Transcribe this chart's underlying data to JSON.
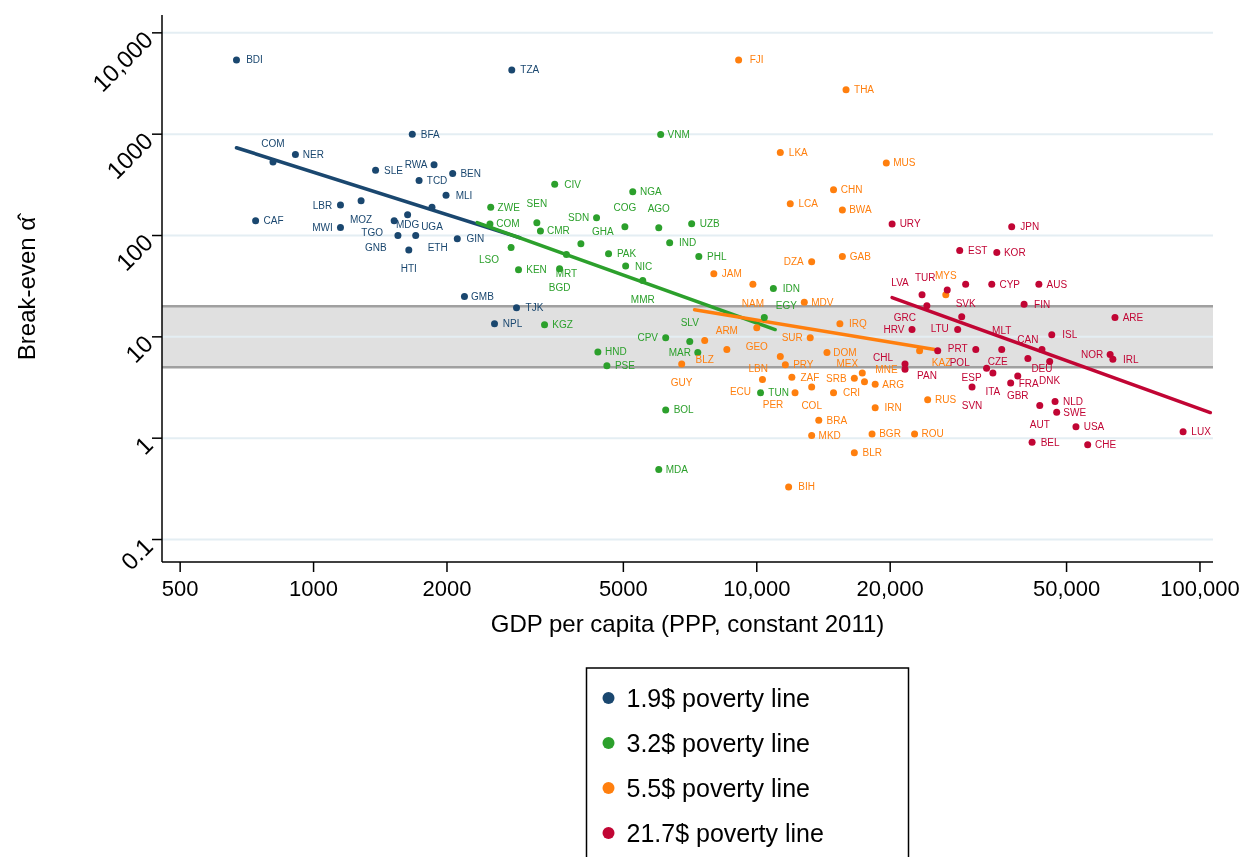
{
  "chart_data": {
    "type": "scatter",
    "xlabel": "GDP per capita (PPP, constant 2011)",
    "ylabel": "Break-even α̂",
    "log": "xy",
    "xlim": [
      455,
      107000
    ],
    "ylim": [
      0.06,
      15000
    ],
    "xticks": [
      500,
      1000,
      2000,
      5000,
      {
        "value": 10000,
        "label": "10,000"
      },
      {
        "value": 20000,
        "label": "20,000"
      },
      {
        "value": 50000,
        "label": "50,000"
      },
      {
        "value": 100000,
        "label": "100,000"
      }
    ],
    "yticks": [
      0.1,
      1,
      10,
      100,
      1000,
      {
        "value": 10000,
        "label": "10,000"
      }
    ],
    "grid": "y",
    "legend": "bottom",
    "marker": "circle",
    "bands": [
      {
        "axis": "y",
        "from": 5,
        "to": 20,
        "color": "#e0e0e0"
      }
    ],
    "ref_lines": [
      {
        "axis": "y",
        "value": 5,
        "color": "#a0a0a0"
      },
      {
        "axis": "y",
        "value": 20,
        "color": "#a0a0a0"
      }
    ],
    "series": [
      {
        "name": "1.9$ poverty line",
        "color": "#1a476f",
        "x": [
          670,
          2800,
          1670,
          910,
          810,
          1380,
          1870,
          2060,
          1730,
          1990,
          1150,
          1280,
          1850,
          1630,
          1520,
          740,
          1150,
          1550,
          1700,
          2110,
          1640,
          2190,
          2870,
          2560
        ],
        "values": [
          5400,
          4300,
          1000,
          630,
          530,
          440,
          500,
          410,
          350,
          250,
          200,
          220,
          190,
          160,
          140,
          140,
          120,
          100,
          100,
          93,
          72,
          25,
          19.4,
          13.5
        ],
        "value_labels": [
          "BDI",
          "TZA",
          "BFA",
          "NER",
          "COM",
          "SLE",
          "RWA",
          "BEN",
          "TCD",
          "MLI",
          "LBR",
          "MOZ",
          "UGA",
          "MDG",
          "TGO",
          "CAF",
          "MWI",
          "GNB",
          "ETH",
          "GIN",
          "HTI",
          "GMB",
          "TJK",
          "NPL"
        ]
      },
      {
        "name": "3.2$ poverty line",
        "color": "#2ca02c",
        "x": [
          2510,
          2500,
          3190,
          3250,
          2790,
          2900,
          3320,
          3500,
          5250,
          4350,
          5040,
          6010,
          7130,
          4010,
          6360,
          4630,
          3720,
          3590,
          5060,
          7400,
          6070,
          5530,
          10900,
          10400,
          6230,
          7060,
          4380,
          4590,
          7360,
          6230,
          6010,
          10200
        ],
        "values": [
          190,
          130,
          134,
          111,
          76,
          46,
          13.2,
          320,
          270,
          150,
          122,
          119,
          131,
          83,
          85,
          66,
          65,
          47,
          50,
          62,
          990,
          36,
          30,
          15.5,
          9.8,
          9,
          7.1,
          5.2,
          7,
          1.9,
          0.49,
          2.8
        ],
        "value_labels": [
          "ZWE",
          "COM",
          "SEN",
          "CMR",
          "LSO",
          "KEN",
          "KGZ",
          "CIV",
          "NGA",
          "SDN",
          "COG",
          "AGO",
          "UZB",
          "GHA",
          "IND",
          "PAK",
          "MRT",
          "BGD",
          "NIC",
          "PHL",
          "VNM",
          "MMR",
          "IDN",
          "EGY",
          "CPV",
          "SLV",
          "HND",
          "PSE",
          "MAR",
          "BOL",
          "MDA",
          "TUN"
        ]
      },
      {
        "name": "5.5$ poverty line",
        "color": "#ff7f0e",
        "x": [
          9100,
          15900,
          11300,
          19600,
          14900,
          11900,
          15600,
          15600,
          13300,
          8000,
          9800,
          12800,
          15400,
          10000,
          13200,
          14400,
          11300,
          11600,
          6770,
          8560,
          7630,
          10300,
          12000,
          13300,
          12200,
          16600,
          17500,
          17300,
          18500,
          14900,
          18500,
          13800,
          13300,
          18200,
          22700,
          16600,
          11800,
          24300,
          23300,
          26700
        ],
        "values": [
          5400,
          2740,
          660,
          520,
          283,
          206,
          179,
          62,
          55,
          42,
          33,
          22,
          13.5,
          12.3,
          9.8,
          7,
          6.4,
          5.3,
          5.4,
          7.5,
          9.2,
          3.8,
          4,
          3.2,
          2.8,
          3.9,
          3.6,
          4.4,
          3.4,
          2.8,
          2,
          1.5,
          1.06,
          1.1,
          1.1,
          0.72,
          0.33,
          2.4,
          7.3,
          26
        ],
        "value_labels": [
          "FJI",
          "THA",
          "LKA",
          "MUS",
          "CHN",
          "LCA",
          "BWA",
          "GAB",
          "DZA",
          "JAM",
          "NAM",
          "MDV",
          "IRQ",
          "GEO",
          "SUR",
          "DOM",
          "LBN",
          "PRY",
          "GUY",
          "ARM",
          "BLZ",
          "ECU",
          "ZAF",
          "COL",
          "PER",
          "SRB",
          "MNE",
          "MEX",
          "ARG",
          "CRI",
          "IRN",
          "BRA",
          "MKD",
          "BGR",
          "ROU",
          "BLR",
          "BIH",
          "RUS",
          "KAZ",
          "MYS"
        ]
      },
      {
        "name": "21.7$ poverty line",
        "color": "#c10534",
        "x": [
          20200,
          37600,
          28700,
          34800,
          29600,
          33900,
          26900,
          43300,
          23600,
          24200,
          40100,
          29000,
          64300,
          22400,
          28400,
          46300,
          25600,
          31200,
          35700,
          44000,
          40900,
          45800,
          62700,
          63600,
          33000,
          34100,
          38800,
          37400,
          30600,
          43500,
          47100,
          47500,
          52500,
          41800,
          55800,
          91600,
          21600,
          21600
        ],
        "values": [
          130,
          122,
          71,
          68,
          33,
          33,
          29,
          33,
          26,
          20.3,
          21,
          15.8,
          15.5,
          11.8,
          11.8,
          10.5,
          7.3,
          7.5,
          7.5,
          7.5,
          6.1,
          5.7,
          6.7,
          6,
          4.9,
          4.4,
          4.1,
          3.5,
          3.2,
          2.1,
          2.3,
          1.8,
          1.3,
          0.91,
          0.86,
          1.16,
          5.4,
          4.8
        ],
        "value_labels": [
          "URY",
          "JPN",
          "EST",
          "KOR",
          "SVK",
          "CYP",
          "TUR",
          "AUS",
          "LVA",
          "GRC",
          "FIN",
          "LTU",
          "ARE",
          "HRV",
          "PRT",
          "ISL",
          "POL",
          "CZE",
          "MLT",
          "DEU",
          "CAN",
          "DNK",
          "NOR",
          "IRL",
          "ESP",
          "ITA",
          "GBR",
          "FRA",
          "SVN",
          "AUT",
          "NLD",
          "SWE",
          "USA",
          "BEL",
          "CHE",
          "LUX",
          "PAN",
          "CHL"
        ]
      },
      {
        "type": "line",
        "marker": "none",
        "color": "#1a476f",
        "x": [
          670,
          2920
        ],
        "values": [
          735,
          95
        ]
      },
      {
        "type": "line",
        "marker": "none",
        "color": "#2ca02c",
        "x": [
          2340,
          11000
        ],
        "values": [
          134,
          11.8
        ]
      },
      {
        "type": "line",
        "marker": "none",
        "color": "#ff7f0e",
        "x": [
          7240,
          25200
        ],
        "values": [
          18.5,
          7.5
        ]
      },
      {
        "type": "line",
        "marker": "none",
        "color": "#c10534",
        "x": [
          20200,
          105500
        ],
        "values": [
          24.4,
          1.79
        ]
      }
    ]
  }
}
